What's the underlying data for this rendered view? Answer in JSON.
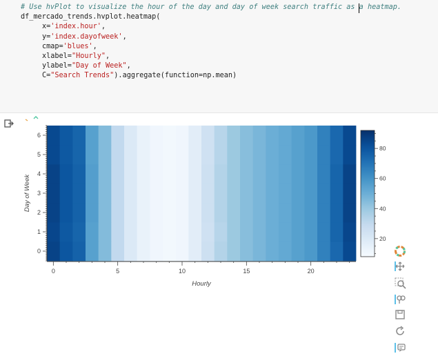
{
  "code": {
    "comment": "# Use hvPlot to visualize the hour of the day and day of week search traffic as a heatmap.",
    "line1": "df_mercado_trends.hvplot.heatmap(",
    "line2_key": "x=",
    "line2_val": "'index.hour'",
    "line3_key": "y=",
    "line3_val": "'index.dayofweek'",
    "line4_key": "cmap=",
    "line4_val": "'blues'",
    "line5_key": "xlabel=",
    "line5_val": "\"Hourly\"",
    "line6_key": "ylabel=",
    "line6_val": "\"Day of Week\"",
    "line7_key": "C=",
    "line7_val": "\"Search Trends\"",
    "line7_tail": ").aggregate(function=np.mean)"
  },
  "toolbar": {
    "icons": [
      "bokeh-logo-icon",
      "pan-icon",
      "box-zoom-icon",
      "wheel-zoom-icon",
      "save-icon",
      "reset-icon",
      "hover-icon"
    ]
  },
  "colors": {
    "min": "#f7fbff",
    "max": "#08306b"
  },
  "chart_data": {
    "type": "heatmap",
    "xlabel": "Hourly",
    "ylabel": "Day of Week",
    "x": [
      0,
      1,
      2,
      3,
      4,
      5,
      6,
      7,
      8,
      9,
      10,
      11,
      12,
      13,
      14,
      15,
      16,
      17,
      18,
      19,
      20,
      21,
      22,
      23
    ],
    "y": [
      0,
      1,
      2,
      3,
      4,
      5,
      6
    ],
    "x_ticks": [
      0,
      5,
      10,
      15,
      20
    ],
    "y_ticks": [
      0,
      1,
      2,
      3,
      4,
      5,
      6
    ],
    "colorbar_ticks": [
      20,
      40,
      60,
      80
    ],
    "color_range": [
      8,
      92
    ],
    "cmap": "blues",
    "values": [
      [
        86,
        80,
        76,
        55,
        45,
        30,
        20,
        14,
        11,
        10,
        11,
        17,
        26,
        34,
        40,
        44,
        47,
        50,
        52,
        55,
        58,
        66,
        74,
        84
      ],
      [
        85,
        79,
        75,
        55,
        45,
        30,
        20,
        14,
        11,
        10,
        11,
        17,
        25,
        33,
        40,
        44,
        47,
        50,
        52,
        55,
        58,
        66,
        75,
        85
      ],
      [
        86,
        80,
        76,
        56,
        45,
        30,
        20,
        14,
        11,
        10,
        11,
        17,
        26,
        34,
        40,
        44,
        47,
        50,
        52,
        55,
        58,
        66,
        75,
        86
      ],
      [
        86,
        80,
        76,
        56,
        45,
        30,
        20,
        14,
        11,
        10,
        11,
        17,
        26,
        34,
        40,
        44,
        47,
        50,
        52,
        55,
        58,
        66,
        75,
        86
      ],
      [
        86,
        80,
        76,
        56,
        45,
        30,
        20,
        14,
        11,
        10,
        11,
        17,
        26,
        34,
        40,
        44,
        47,
        50,
        52,
        55,
        58,
        66,
        75,
        86
      ],
      [
        84,
        79,
        75,
        55,
        45,
        30,
        20,
        14,
        11,
        10,
        11,
        17,
        25,
        33,
        40,
        44,
        47,
        50,
        52,
        55,
        58,
        66,
        74,
        84
      ],
      [
        84,
        79,
        75,
        55,
        45,
        30,
        20,
        14,
        11,
        10,
        11,
        17,
        25,
        33,
        40,
        44,
        47,
        50,
        52,
        55,
        58,
        66,
        74,
        84
      ]
    ]
  }
}
